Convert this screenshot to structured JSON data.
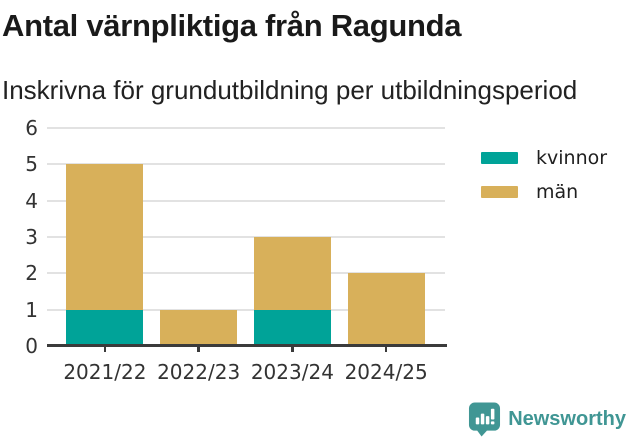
{
  "header": {
    "title": "Antal värnpliktiga från Ragunda",
    "subtitle": "Inskrivna för grundutbildning per utbildningsperiod"
  },
  "chart_data": {
    "type": "bar",
    "stacked": true,
    "title": "Antal värnpliktiga från Ragunda",
    "subtitle": "Inskrivna för grundutbildning per utbildningsperiod",
    "categories": [
      "2021/22",
      "2022/23",
      "2023/24",
      "2024/25"
    ],
    "series": [
      {
        "name": "kvinnor",
        "color": "#00A398",
        "values": [
          1,
          0,
          1,
          0
        ]
      },
      {
        "name": "män",
        "color": "#D8B05A",
        "values": [
          4,
          1,
          2,
          2
        ]
      }
    ],
    "totals": [
      5,
      1,
      3,
      2
    ],
    "xlabel": "",
    "ylabel": "",
    "ylim": [
      0,
      6
    ],
    "yticks": [
      0,
      1,
      2,
      3,
      4,
      5,
      6
    ],
    "grid": true,
    "legend_position": "outside-upper-right"
  },
  "legend": {
    "items": [
      {
        "label": "kvinnor",
        "color": "#00A398"
      },
      {
        "label": "män",
        "color": "#D8B05A"
      }
    ]
  },
  "footer": {
    "brand": "Newsworthy",
    "brand_color": "#409694",
    "logo_icon": "newsworthy-bar-chart-bubble-icon"
  },
  "style": {
    "background": "#ffffff",
    "axis_color": "#3b3b3b",
    "grid_color": "#e2e2e2",
    "tick_label_color": "#333333",
    "title_color": "#1a1a1a",
    "subtitle_color": "#222222"
  }
}
